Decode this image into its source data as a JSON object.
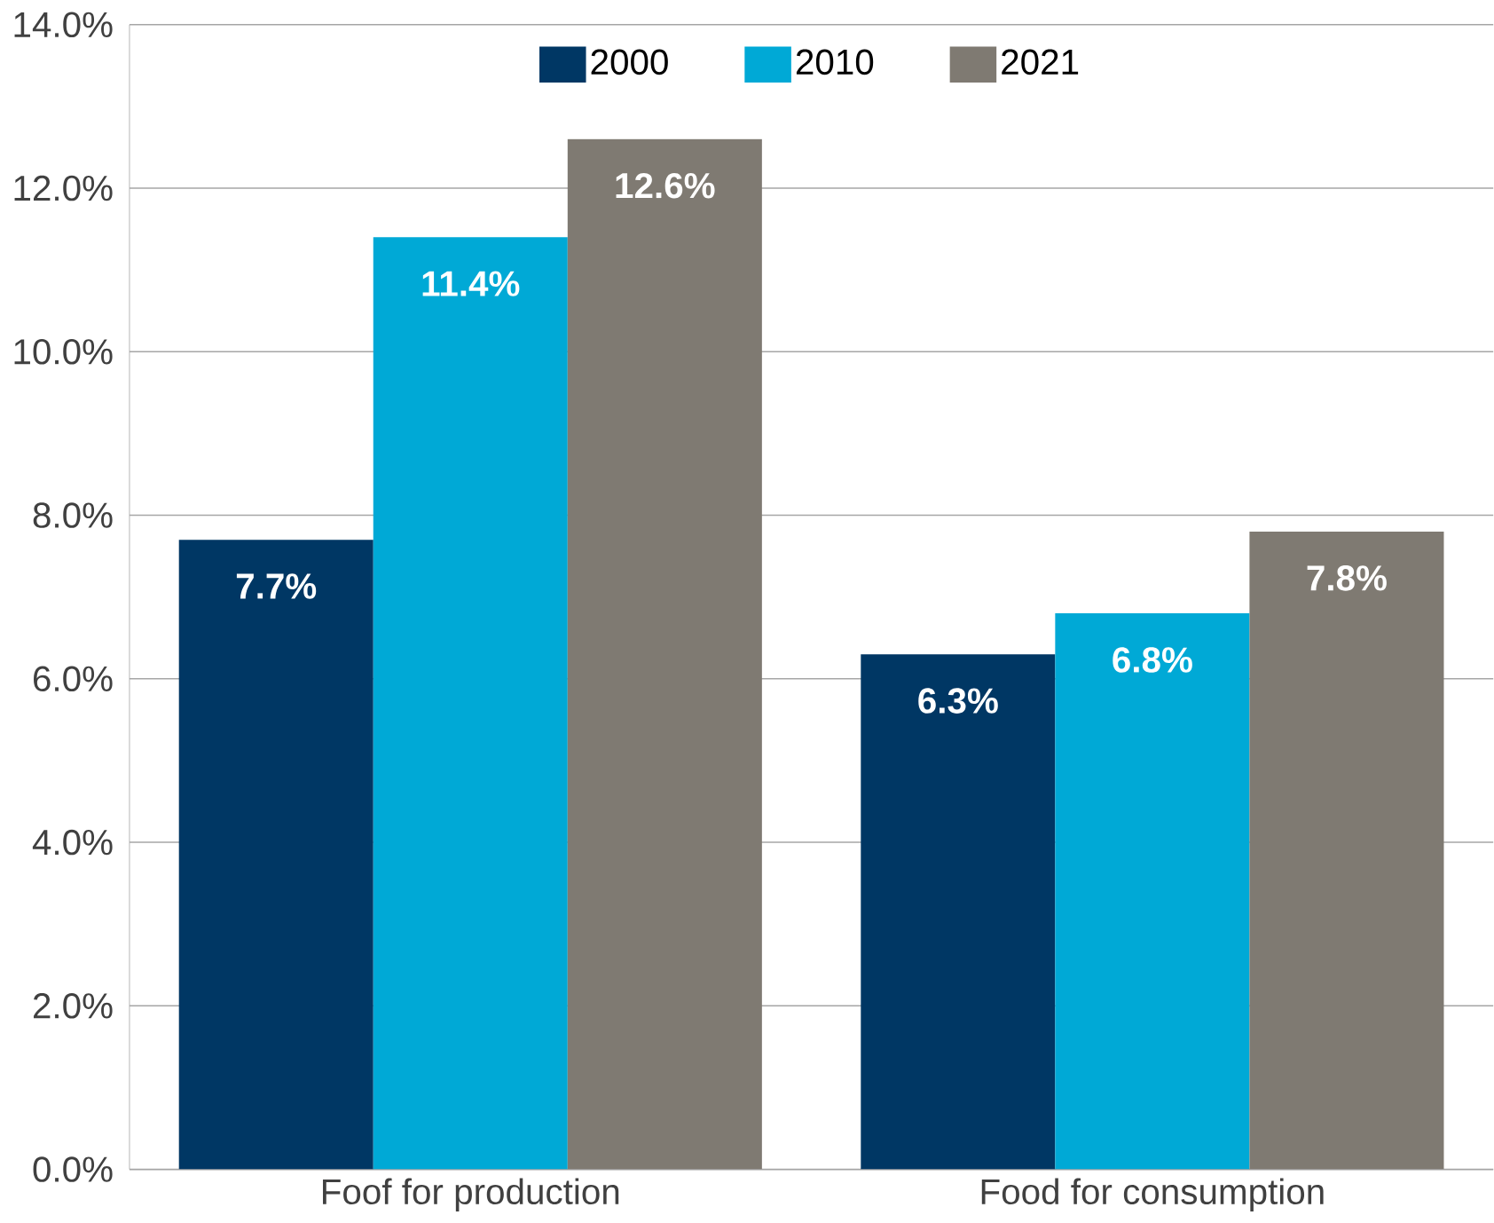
{
  "chart_data": {
    "type": "bar",
    "categories": [
      "Foof for production",
      "Food for consumption"
    ],
    "series": [
      {
        "name": "2000",
        "color": "#003764",
        "values": [
          7.7,
          6.3
        ],
        "value_labels": [
          "7.7%",
          "6.3%"
        ]
      },
      {
        "name": "2010",
        "color": "#00a9d6",
        "values": [
          11.4,
          6.8
        ],
        "value_labels": [
          "11.4%",
          "6.8%"
        ]
      },
      {
        "name": "2021",
        "color": "#7f7a72",
        "values": [
          12.6,
          7.8
        ],
        "value_labels": [
          "12.6%",
          "7.8%"
        ]
      }
    ],
    "ylim": [
      0,
      14
    ],
    "yticks": [
      {
        "value": 0,
        "label": "0.0%"
      },
      {
        "value": 2,
        "label": "2.0%"
      },
      {
        "value": 4,
        "label": "4.0%"
      },
      {
        "value": 6,
        "label": "6.0%"
      },
      {
        "value": 8,
        "label": "8.0%"
      },
      {
        "value": 10,
        "label": "10.0%"
      },
      {
        "value": 12,
        "label": "12.0%"
      },
      {
        "value": 14,
        "label": "14.0%"
      }
    ],
    "grid": "y",
    "legend": "top"
  }
}
